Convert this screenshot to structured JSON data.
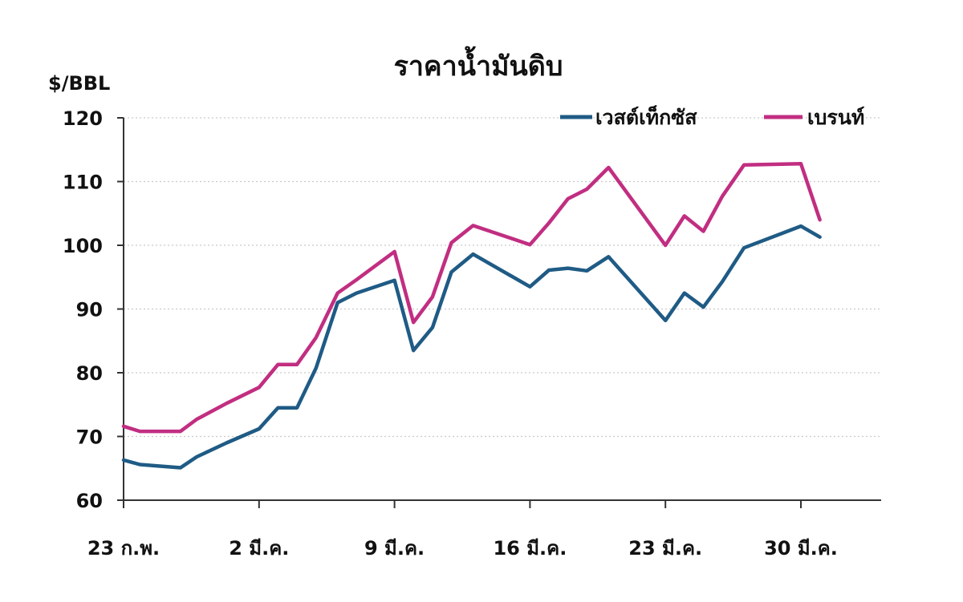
{
  "chart_data": {
    "type": "line",
    "title": "ราคาน้ำมันดิบ",
    "ylabel": "$/BBL",
    "ylim": [
      60,
      120
    ],
    "yticks": [
      60,
      70,
      80,
      90,
      100,
      110,
      120
    ],
    "xlim": [
      0,
      27.6
    ],
    "xticks": [
      {
        "x": 0,
        "label": "23 ก.พ."
      },
      {
        "x": 5,
        "label": "2 มี.ค."
      },
      {
        "x": 10,
        "label": "9 มี.ค."
      },
      {
        "x": 15,
        "label": "16 มี.ค."
      },
      {
        "x": 20,
        "label": "23 มี.ค."
      },
      {
        "x": 25,
        "label": "30 มี.ค."
      }
    ],
    "grid": true,
    "legend_position": "top-right",
    "series": [
      {
        "name": "เวสต์เท็กซัส",
        "color": "#1f5b85",
        "points": [
          [
            0,
            66.3
          ],
          [
            0.6,
            65.6
          ],
          [
            1.2,
            65.4
          ],
          [
            2.1,
            65.1
          ],
          [
            2.7,
            66.8
          ],
          [
            3.8,
            69.0
          ],
          [
            5,
            71.2
          ],
          [
            5.7,
            74.5
          ],
          [
            6.4,
            74.5
          ],
          [
            7.1,
            80.7
          ],
          [
            7.9,
            91.0
          ],
          [
            8.6,
            92.5
          ],
          [
            10,
            94.5
          ],
          [
            10.7,
            83.5
          ],
          [
            11.4,
            87.1
          ],
          [
            12.1,
            95.8
          ],
          [
            12.9,
            98.6
          ],
          [
            15,
            93.5
          ],
          [
            15.7,
            96.1
          ],
          [
            16.4,
            96.4
          ],
          [
            17.1,
            96.0
          ],
          [
            17.9,
            98.2
          ],
          [
            20,
            88.2
          ],
          [
            20.7,
            92.5
          ],
          [
            21.4,
            90.3
          ],
          [
            22.1,
            94.3
          ],
          [
            22.9,
            99.6
          ],
          [
            25,
            103.0
          ],
          [
            25.7,
            101.3
          ]
        ]
      },
      {
        "name": "เบรนท์",
        "color": "#c12e81",
        "points": [
          [
            0,
            71.6
          ],
          [
            0.6,
            70.8
          ],
          [
            1.2,
            70.8
          ],
          [
            2.1,
            70.8
          ],
          [
            2.7,
            72.7
          ],
          [
            3.8,
            75.2
          ],
          [
            5,
            77.7
          ],
          [
            5.7,
            81.3
          ],
          [
            6.4,
            81.3
          ],
          [
            7.1,
            85.5
          ],
          [
            7.9,
            92.5
          ],
          [
            8.6,
            94.6
          ],
          [
            10,
            99.0
          ],
          [
            10.7,
            87.9
          ],
          [
            11.4,
            91.9
          ],
          [
            12.1,
            100.4
          ],
          [
            12.9,
            103.1
          ],
          [
            15,
            100.1
          ],
          [
            15.7,
            103.5
          ],
          [
            16.4,
            107.3
          ],
          [
            17.1,
            108.8
          ],
          [
            17.9,
            112.2
          ],
          [
            20,
            100.0
          ],
          [
            20.7,
            104.6
          ],
          [
            21.4,
            102.2
          ],
          [
            22.1,
            107.7
          ],
          [
            22.9,
            112.6
          ],
          [
            25,
            112.8
          ],
          [
            25.7,
            104.0
          ]
        ]
      }
    ]
  }
}
